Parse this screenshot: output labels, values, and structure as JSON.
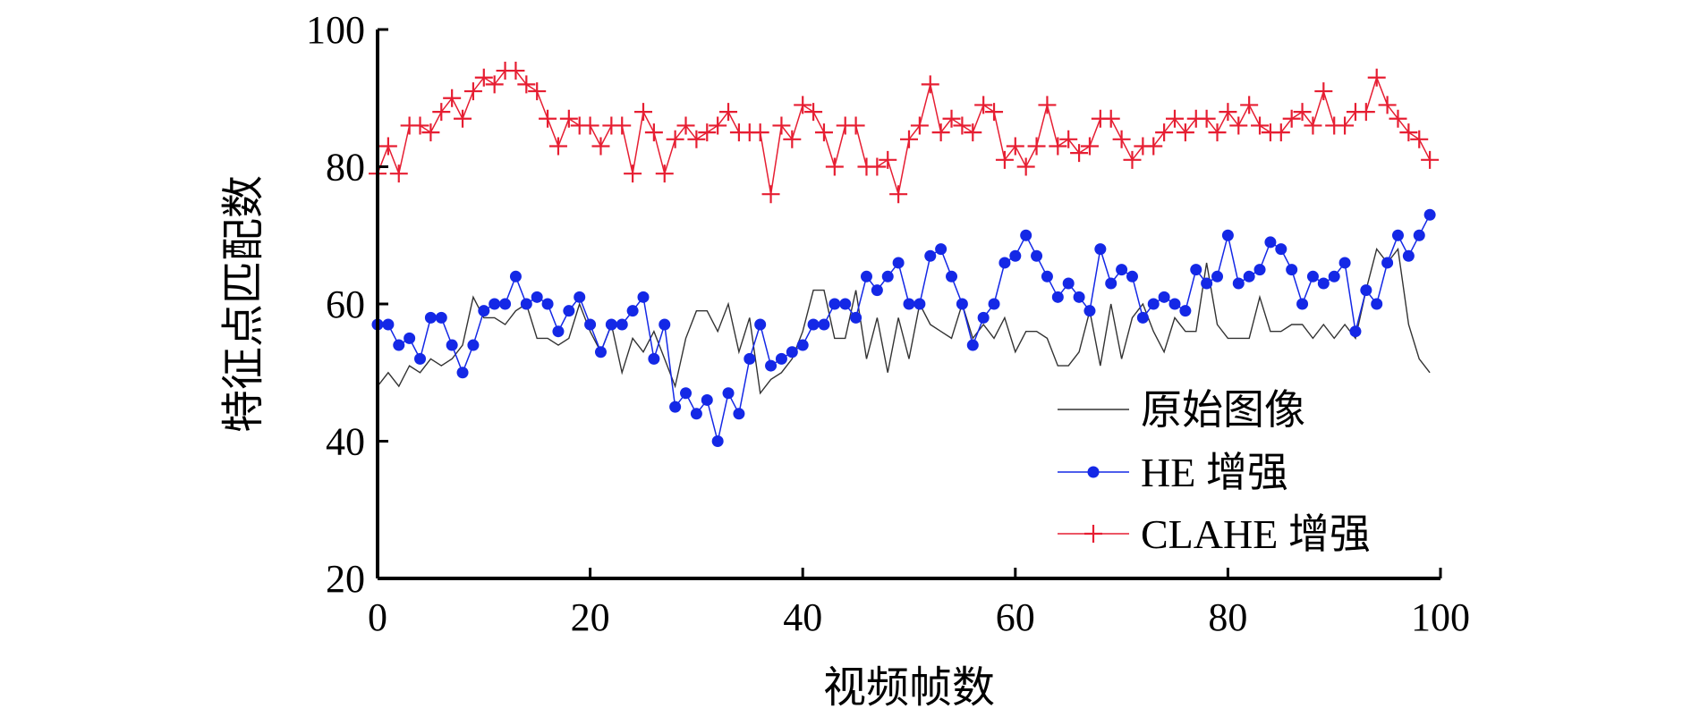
{
  "chart_data": {
    "type": "line",
    "xlabel": "视频帧数",
    "ylabel": "特征点匹配数",
    "xlim": [
      0,
      100
    ],
    "ylim": [
      20,
      100
    ],
    "xticks": [
      0,
      20,
      40,
      60,
      80,
      100
    ],
    "yticks": [
      20,
      40,
      60,
      80,
      100
    ],
    "grid": false,
    "legend_position": "bottom-right",
    "x": [
      0,
      1,
      2,
      3,
      4,
      5,
      6,
      7,
      8,
      9,
      10,
      11,
      12,
      13,
      14,
      15,
      16,
      17,
      18,
      19,
      20,
      21,
      22,
      23,
      24,
      25,
      26,
      27,
      28,
      29,
      30,
      31,
      32,
      33,
      34,
      35,
      36,
      37,
      38,
      39,
      40,
      41,
      42,
      43,
      44,
      45,
      46,
      47,
      48,
      49,
      50,
      51,
      52,
      53,
      54,
      55,
      56,
      57,
      58,
      59,
      60,
      61,
      62,
      63,
      64,
      65,
      66,
      67,
      68,
      69,
      70,
      71,
      72,
      73,
      74,
      75,
      76,
      77,
      78,
      79,
      80,
      81,
      82,
      83,
      84,
      85,
      86,
      87,
      88,
      89,
      90,
      91,
      92,
      93,
      94,
      95,
      96,
      97,
      98,
      99
    ],
    "series": [
      {
        "name": "原始图像",
        "color": "#333333",
        "marker": "none",
        "values": [
          48,
          50,
          48,
          51,
          50,
          52,
          51,
          52,
          54,
          61,
          58,
          58,
          57,
          59,
          60,
          55,
          55,
          54,
          55,
          60,
          56,
          53,
          57,
          50,
          55,
          53,
          56,
          52,
          48,
          55,
          59,
          59,
          56,
          60,
          53,
          58,
          47,
          49,
          50,
          52,
          56,
          62,
          62,
          55,
          55,
          62,
          52,
          58,
          50,
          58,
          52,
          60,
          57,
          56,
          55,
          60,
          55,
          57,
          55,
          58,
          53,
          56,
          56,
          55,
          51,
          51,
          53,
          59,
          51,
          60,
          52,
          58,
          60,
          56,
          53,
          58,
          56,
          56,
          66,
          57,
          55,
          55,
          55,
          61,
          56,
          56,
          57,
          57,
          55,
          57,
          55,
          57,
          55,
          62,
          68,
          66,
          68,
          57,
          52,
          50
        ]
      },
      {
        "name": "HE 增强",
        "color": "#1428e6",
        "marker": "circle",
        "values": [
          57,
          57,
          54,
          55,
          52,
          58,
          58,
          54,
          50,
          54,
          59,
          60,
          60,
          64,
          60,
          61,
          60,
          56,
          59,
          61,
          57,
          53,
          57,
          57,
          59,
          61,
          52,
          57,
          45,
          47,
          44,
          46,
          40,
          47,
          44,
          52,
          57,
          51,
          52,
          53,
          54,
          57,
          57,
          60,
          60,
          58,
          64,
          62,
          64,
          66,
          60,
          60,
          67,
          68,
          64,
          60,
          54,
          58,
          60,
          66,
          67,
          70,
          67,
          64,
          61,
          63,
          61,
          59,
          68,
          63,
          65,
          64,
          58,
          60,
          61,
          60,
          59,
          65,
          63,
          64,
          70,
          63,
          64,
          65,
          69,
          68,
          65,
          60,
          64,
          63,
          64,
          66,
          56,
          62,
          60,
          66,
          70,
          67,
          70,
          73
        ]
      },
      {
        "name": "CLAHE 增强",
        "color": "#e61e32",
        "marker": "plus",
        "values": [
          79,
          83,
          79,
          86,
          86,
          85,
          88,
          90,
          87,
          91,
          93,
          92,
          94,
          94,
          92,
          91,
          87,
          83,
          87,
          86,
          86,
          83,
          86,
          86,
          79,
          88,
          85,
          79,
          84,
          86,
          84,
          85,
          86,
          88,
          85,
          85,
          85,
          76,
          86,
          84,
          89,
          88,
          85,
          80,
          86,
          86,
          80,
          80,
          81,
          76,
          84,
          86,
          92,
          85,
          87,
          86,
          85,
          89,
          88,
          81,
          83,
          80,
          83,
          89,
          83,
          84,
          82,
          83,
          87,
          87,
          84,
          81,
          83,
          83,
          85,
          87,
          85,
          87,
          87,
          85,
          88,
          86,
          89,
          86,
          85,
          85,
          87,
          88,
          86,
          91,
          86,
          86,
          88,
          88,
          93,
          89,
          87,
          85,
          84,
          81
        ]
      }
    ]
  }
}
